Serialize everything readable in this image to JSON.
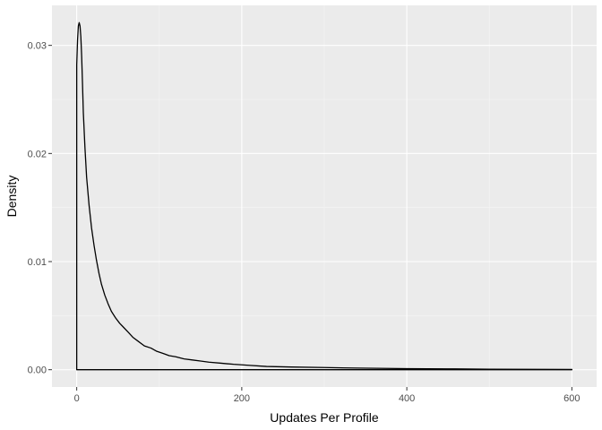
{
  "chart_data": {
    "type": "area",
    "title": "",
    "xlabel": "Updates Per Profile",
    "ylabel": "Density",
    "xlim": [
      -30,
      630
    ],
    "ylim": [
      -0.0016,
      0.0337
    ],
    "x_ticks": [
      0,
      200,
      400,
      600
    ],
    "x_tick_labels": [
      "0",
      "200",
      "400",
      "600"
    ],
    "y_ticks": [
      0.0,
      0.01,
      0.02,
      0.03
    ],
    "y_tick_labels": [
      "0.00",
      "0.01",
      "0.02",
      "0.03"
    ],
    "grid": true,
    "legend": "none",
    "series": [
      {
        "values": [
          [
            0,
            0.0282
          ],
          [
            1,
            0.0305
          ],
          [
            2,
            0.0318
          ],
          [
            3,
            0.0321
          ],
          [
            4,
            0.0318
          ],
          [
            5,
            0.0308
          ],
          [
            6,
            0.029
          ],
          [
            7,
            0.0265
          ],
          [
            8,
            0.0238
          ],
          [
            10,
            0.0205
          ],
          [
            12,
            0.0178
          ],
          [
            15,
            0.0152
          ],
          [
            18,
            0.0131
          ],
          [
            21,
            0.0115
          ],
          [
            24,
            0.0101
          ],
          [
            27,
            0.0089
          ],
          [
            30,
            0.0079
          ],
          [
            34,
            0.0069
          ],
          [
            38,
            0.0061
          ],
          [
            42,
            0.0054
          ],
          [
            47,
            0.0048
          ],
          [
            52,
            0.0043
          ],
          [
            57,
            0.0039
          ],
          [
            62,
            0.0035
          ],
          [
            68,
            0.003
          ],
          [
            75,
            0.0026
          ],
          [
            82,
            0.0022
          ],
          [
            90,
            0.002
          ],
          [
            97,
            0.0017
          ],
          [
            105,
            0.0015
          ],
          [
            112,
            0.0013
          ],
          [
            120,
            0.0012
          ],
          [
            130,
            0.001
          ],
          [
            140,
            0.0009
          ],
          [
            150,
            0.0008
          ],
          [
            160,
            0.0007
          ],
          [
            175,
            0.0006
          ],
          [
            190,
            0.0005
          ],
          [
            210,
            0.0004
          ],
          [
            230,
            0.0003
          ],
          [
            260,
            0.00025
          ],
          [
            300,
            0.0002
          ],
          [
            340,
            0.00015
          ],
          [
            400,
            0.0001
          ],
          [
            450,
            8e-05
          ],
          [
            500,
            5e-05
          ],
          [
            550,
            3e-05
          ],
          [
            600,
            2e-05
          ]
        ]
      }
    ]
  }
}
